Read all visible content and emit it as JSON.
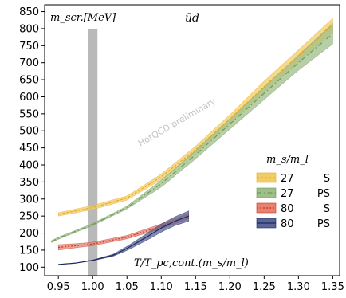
{
  "chart_data": {
    "type": "line",
    "ylabel": "m_scr.[MeV]",
    "xlabel": "T/T_pc,cont.(m_s/m_l)",
    "subtitle": "ūd",
    "watermark": "HotQCD preliminary",
    "xlim": [
      0.93,
      1.36
    ],
    "ylim": [
      75,
      870
    ],
    "xticks": [
      0.95,
      1.0,
      1.05,
      1.1,
      1.15,
      1.2,
      1.25,
      1.3,
      1.35
    ],
    "xtick_labels": [
      "0.95",
      "1.00",
      "1.05",
      "1.10",
      "1.15",
      "1.20",
      "1.25",
      "1.30",
      "1.35"
    ],
    "yticks": [
      100,
      150,
      200,
      250,
      300,
      350,
      400,
      450,
      500,
      550,
      600,
      650,
      700,
      750,
      800,
      850
    ],
    "ytick_labels": [
      "100",
      "150",
      "200",
      "250",
      "300",
      "350",
      "400",
      "450",
      "500",
      "550",
      "600",
      "650",
      "700",
      "750",
      "800",
      "850"
    ],
    "pc_band": {
      "x_range": [
        0.993,
        1.007
      ],
      "y_range": [
        75,
        798
      ],
      "color": "#b9b9b9"
    },
    "legend": {
      "title": "m_s/m_l",
      "position": "center-right",
      "entries": [
        {
          "ratio": "27",
          "channel": "S"
        },
        {
          "ratio": "27",
          "channel": "PS"
        },
        {
          "ratio": "80",
          "channel": "S"
        },
        {
          "ratio": "80",
          "channel": "PS"
        }
      ]
    },
    "series": [
      {
        "ratio": "27",
        "channel": "S",
        "color": "#e8a928",
        "band_color": "#f2cd65",
        "dash": "3,2",
        "x": [
          0.95,
          1.0,
          1.05,
          1.1,
          1.15,
          1.2,
          1.25,
          1.3,
          1.35
        ],
        "y": [
          255,
          275,
          303,
          365,
          445,
          535,
          630,
          720,
          810
        ],
        "err": [
          5,
          6,
          6,
          8,
          10,
          12,
          16,
          18,
          20
        ]
      },
      {
        "ratio": "27",
        "channel": "PS",
        "color": "#6f9a5a",
        "band_color": "#9fbf8a",
        "dash": "6,3,1.5,3",
        "x": [
          0.94,
          0.95,
          1.0,
          1.05,
          1.1,
          1.15,
          1.2,
          1.25,
          1.3,
          1.35
        ],
        "y": [
          175,
          185,
          225,
          275,
          345,
          430,
          520,
          610,
          700,
          785
        ],
        "err": [
          3,
          3,
          3,
          4,
          10,
          12,
          15,
          18,
          22,
          30
        ]
      },
      {
        "ratio": "80",
        "channel": "S",
        "color": "#c0392b",
        "band_color": "#e8826f",
        "dash": "2,2",
        "x": [
          0.95,
          0.975,
          1.0,
          1.05,
          1.1,
          1.14
        ],
        "y": [
          158,
          163,
          168,
          188,
          220,
          250
        ],
        "err": [
          8,
          6,
          5,
          5,
          7,
          8
        ]
      },
      {
        "ratio": "80",
        "channel": "PS",
        "color": "#1b2a5e",
        "band_color": "#5a6496",
        "dash": "",
        "x": [
          0.95,
          0.975,
          1.0,
          1.03,
          1.05,
          1.08,
          1.1,
          1.12,
          1.14
        ],
        "y": [
          108,
          112,
          120,
          135,
          155,
          190,
          215,
          235,
          250
        ],
        "err": [
          0,
          0,
          1,
          3,
          6,
          10,
          12,
          13,
          15
        ]
      }
    ]
  }
}
